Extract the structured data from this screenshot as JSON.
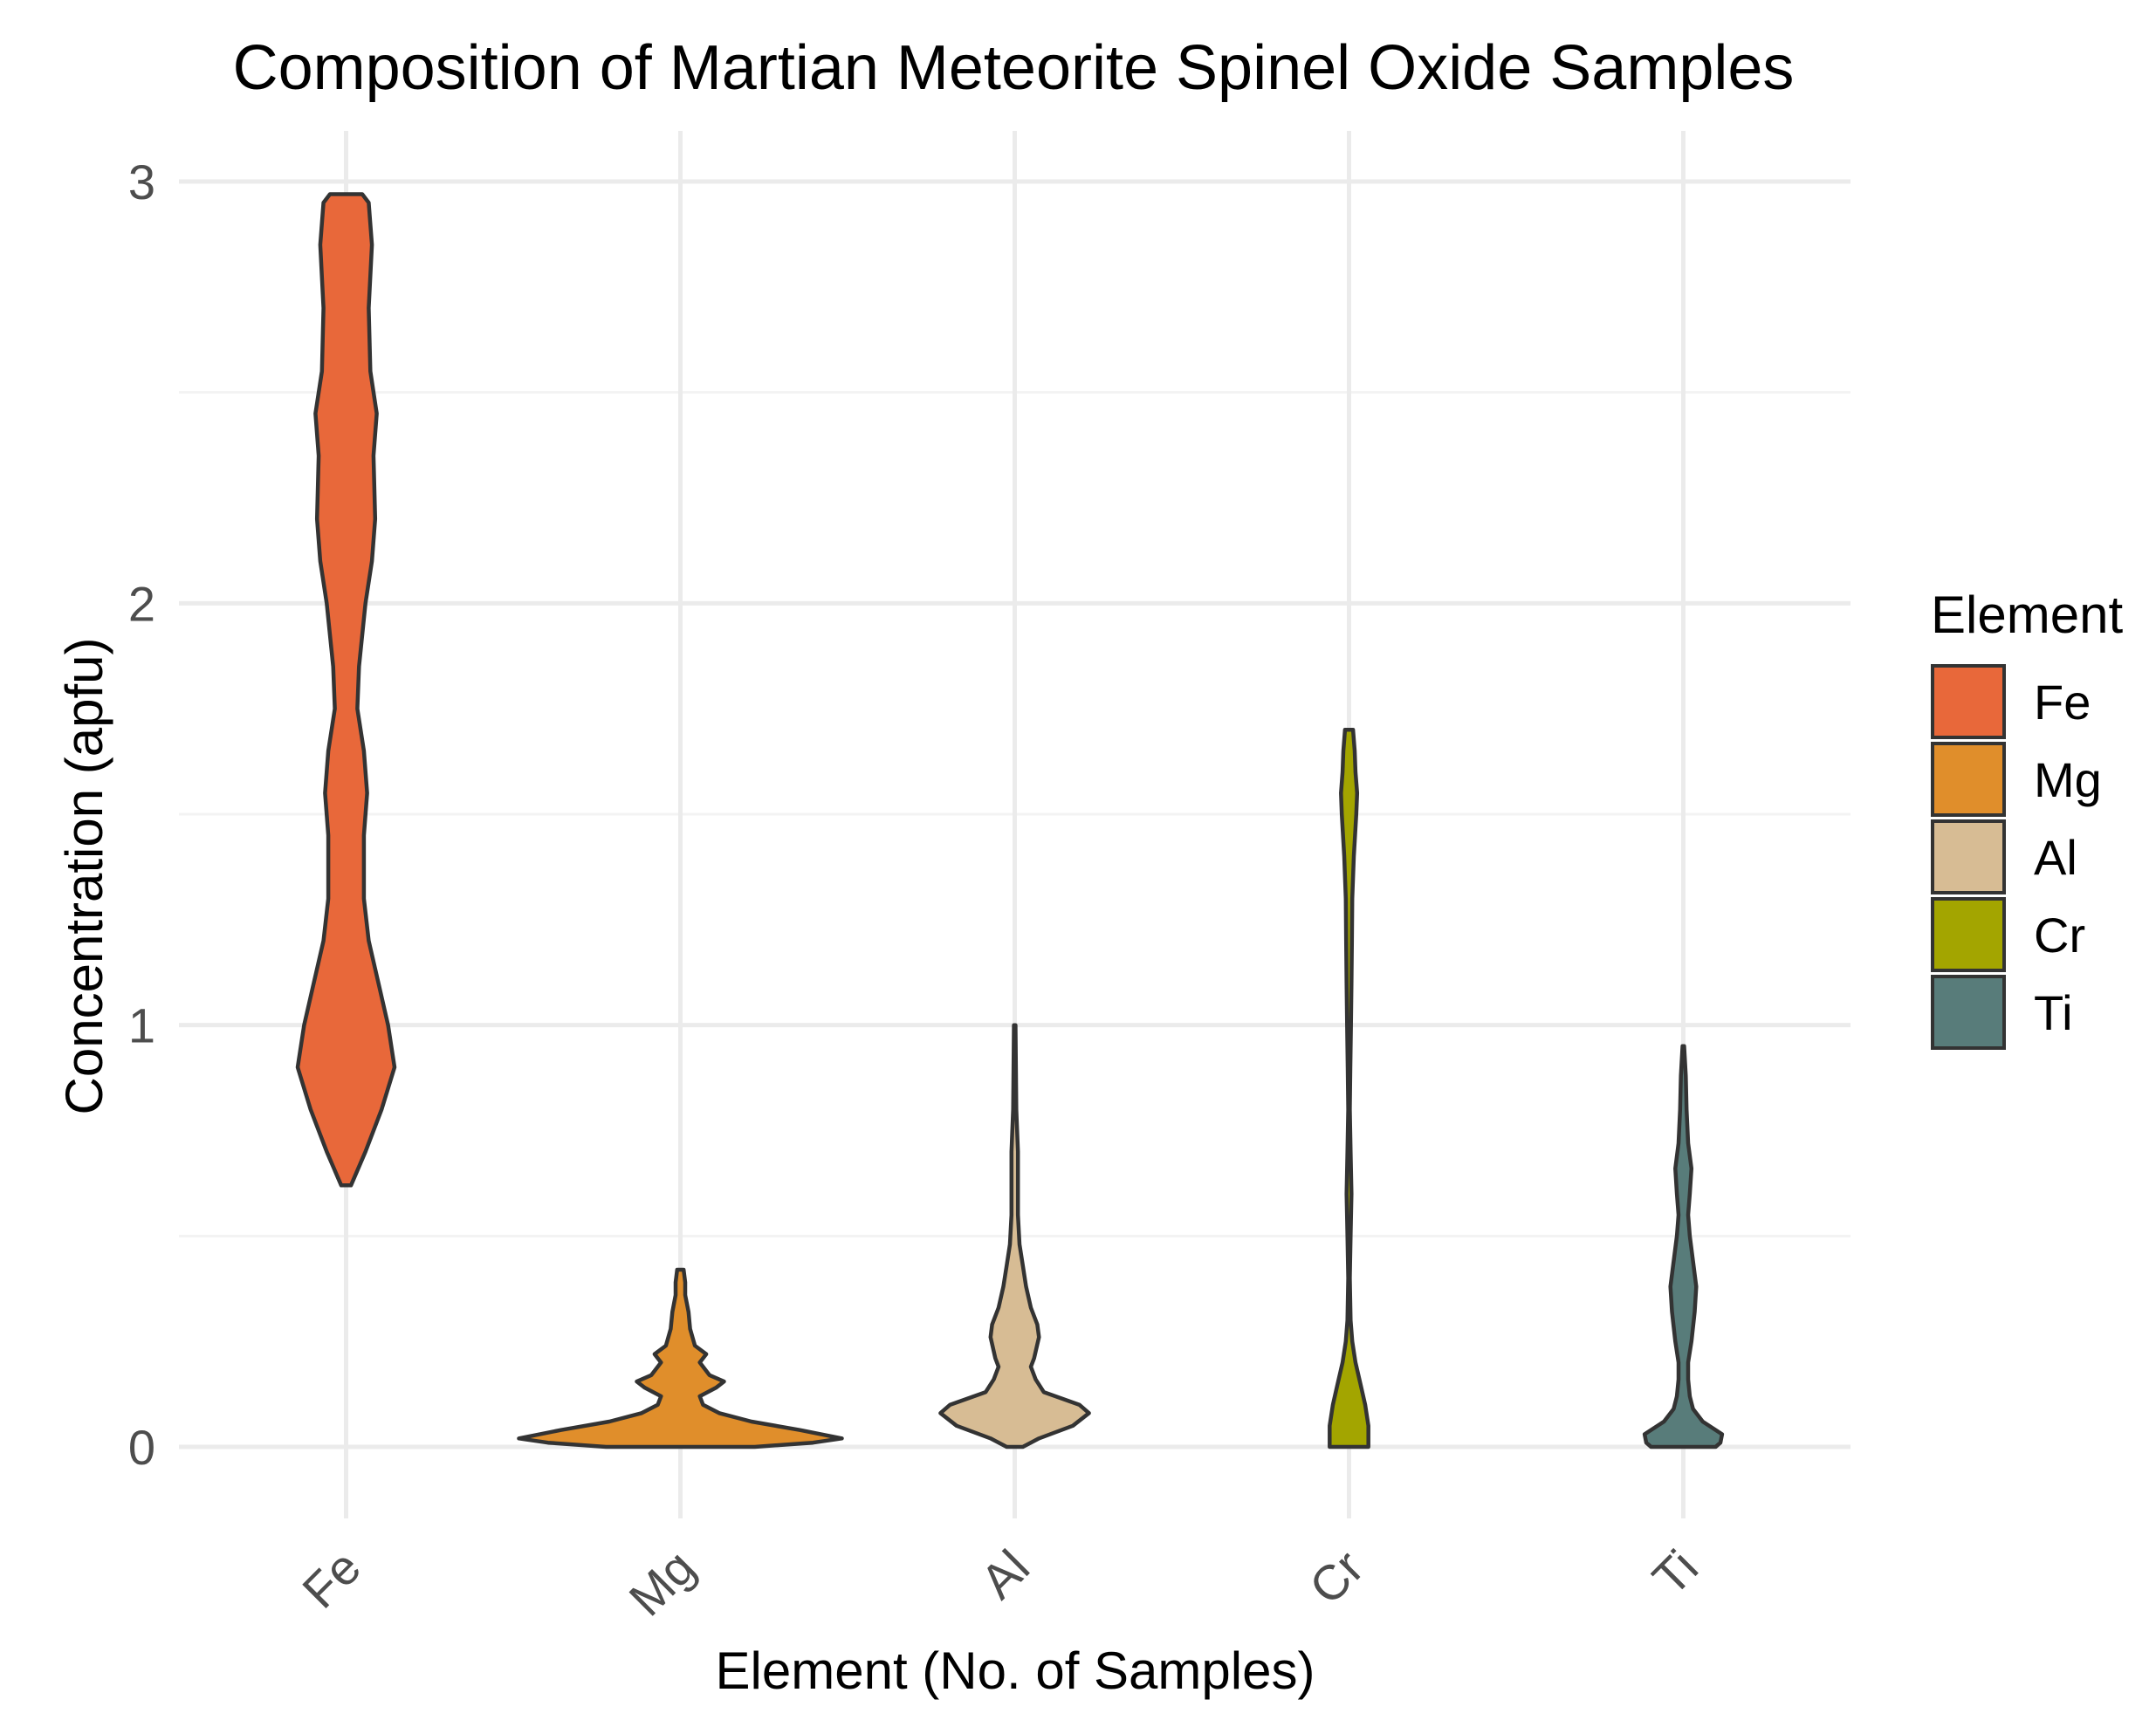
{
  "chart_data": {
    "type": "violin",
    "title": "Composition of Martian Meteorite Spinel Oxide Samples",
    "xlabel": "Element (No. of Samples)",
    "ylabel": "Concentration (apfu)",
    "ylim": [
      -0.15,
      3.12
    ],
    "yticks": [
      0,
      1,
      2,
      3
    ],
    "grid": true,
    "legend": {
      "title": "Element",
      "position": "right"
    },
    "series": [
      {
        "name": "Fe",
        "color": "#E8683A",
        "ymin": 0.62,
        "ymax": 2.97,
        "density": [
          [
            0.62,
            0.03
          ],
          [
            0.7,
            0.12
          ],
          [
            0.8,
            0.22
          ],
          [
            0.9,
            0.3
          ],
          [
            1.0,
            0.26
          ],
          [
            1.1,
            0.2
          ],
          [
            1.2,
            0.14
          ],
          [
            1.3,
            0.11
          ],
          [
            1.45,
            0.11
          ],
          [
            1.55,
            0.13
          ],
          [
            1.65,
            0.11
          ],
          [
            1.75,
            0.07
          ],
          [
            1.85,
            0.08
          ],
          [
            2.0,
            0.12
          ],
          [
            2.1,
            0.16
          ],
          [
            2.2,
            0.18
          ],
          [
            2.35,
            0.17
          ],
          [
            2.45,
            0.19
          ],
          [
            2.55,
            0.15
          ],
          [
            2.7,
            0.14
          ],
          [
            2.85,
            0.16
          ],
          [
            2.95,
            0.14
          ],
          [
            2.97,
            0.1
          ]
        ]
      },
      {
        "name": "Mg",
        "color": "#E08E2B",
        "ymin": 0.0,
        "ymax": 0.42,
        "density": [
          [
            0.0,
            0.46
          ],
          [
            0.01,
            0.82
          ],
          [
            0.02,
            1.0
          ],
          [
            0.04,
            0.74
          ],
          [
            0.06,
            0.44
          ],
          [
            0.08,
            0.24
          ],
          [
            0.1,
            0.14
          ],
          [
            0.12,
            0.12
          ],
          [
            0.14,
            0.22
          ],
          [
            0.155,
            0.27
          ],
          [
            0.17,
            0.18
          ],
          [
            0.2,
            0.12
          ],
          [
            0.22,
            0.16
          ],
          [
            0.24,
            0.09
          ],
          [
            0.28,
            0.06
          ],
          [
            0.32,
            0.05
          ],
          [
            0.36,
            0.03
          ],
          [
            0.39,
            0.03
          ],
          [
            0.42,
            0.02
          ]
        ]
      },
      {
        "name": "Al",
        "color": "#D7BC94",
        "ymin": 0.0,
        "ymax": 1.0,
        "density": [
          [
            0.0,
            0.05
          ],
          [
            0.02,
            0.15
          ],
          [
            0.05,
            0.36
          ],
          [
            0.08,
            0.46
          ],
          [
            0.1,
            0.4
          ],
          [
            0.13,
            0.18
          ],
          [
            0.16,
            0.13
          ],
          [
            0.19,
            0.1
          ],
          [
            0.21,
            0.12
          ],
          [
            0.26,
            0.15
          ],
          [
            0.29,
            0.14
          ],
          [
            0.33,
            0.1
          ],
          [
            0.38,
            0.07
          ],
          [
            0.43,
            0.05
          ],
          [
            0.48,
            0.03
          ],
          [
            0.55,
            0.02
          ],
          [
            0.7,
            0.02
          ],
          [
            0.8,
            0.01
          ],
          [
            1.0,
            0.005
          ]
        ]
      },
      {
        "name": "Cr",
        "color": "#A3A500",
        "ymin": 0.0,
        "ymax": 1.7,
        "density": [
          [
            0.0,
            0.12
          ],
          [
            0.05,
            0.12
          ],
          [
            0.1,
            0.1
          ],
          [
            0.15,
            0.07
          ],
          [
            0.2,
            0.04
          ],
          [
            0.25,
            0.02
          ],
          [
            0.3,
            0.01
          ],
          [
            0.4,
            0.005
          ],
          [
            0.5,
            0.01
          ],
          [
            0.6,
            0.015
          ],
          [
            0.7,
            0.01
          ],
          [
            0.8,
            0.005
          ],
          [
            0.9,
            0.008
          ],
          [
            1.0,
            0.012
          ],
          [
            1.1,
            0.015
          ],
          [
            1.2,
            0.018
          ],
          [
            1.3,
            0.02
          ],
          [
            1.4,
            0.03
          ],
          [
            1.5,
            0.045
          ],
          [
            1.55,
            0.05
          ],
          [
            1.6,
            0.04
          ],
          [
            1.65,
            0.035
          ],
          [
            1.7,
            0.025
          ]
        ]
      },
      {
        "name": "Ti",
        "color": "#587C7A",
        "ymin": 0.0,
        "ymax": 0.95,
        "density": [
          [
            0.0,
            0.2
          ],
          [
            0.01,
            0.23
          ],
          [
            0.03,
            0.24
          ],
          [
            0.06,
            0.12
          ],
          [
            0.09,
            0.06
          ],
          [
            0.12,
            0.04
          ],
          [
            0.16,
            0.03
          ],
          [
            0.2,
            0.03
          ],
          [
            0.25,
            0.05
          ],
          [
            0.32,
            0.07
          ],
          [
            0.38,
            0.08
          ],
          [
            0.44,
            0.06
          ],
          [
            0.5,
            0.04
          ],
          [
            0.55,
            0.03
          ],
          [
            0.6,
            0.04
          ],
          [
            0.66,
            0.05
          ],
          [
            0.72,
            0.03
          ],
          [
            0.8,
            0.02
          ],
          [
            0.88,
            0.015
          ],
          [
            0.95,
            0.005
          ]
        ]
      }
    ]
  }
}
